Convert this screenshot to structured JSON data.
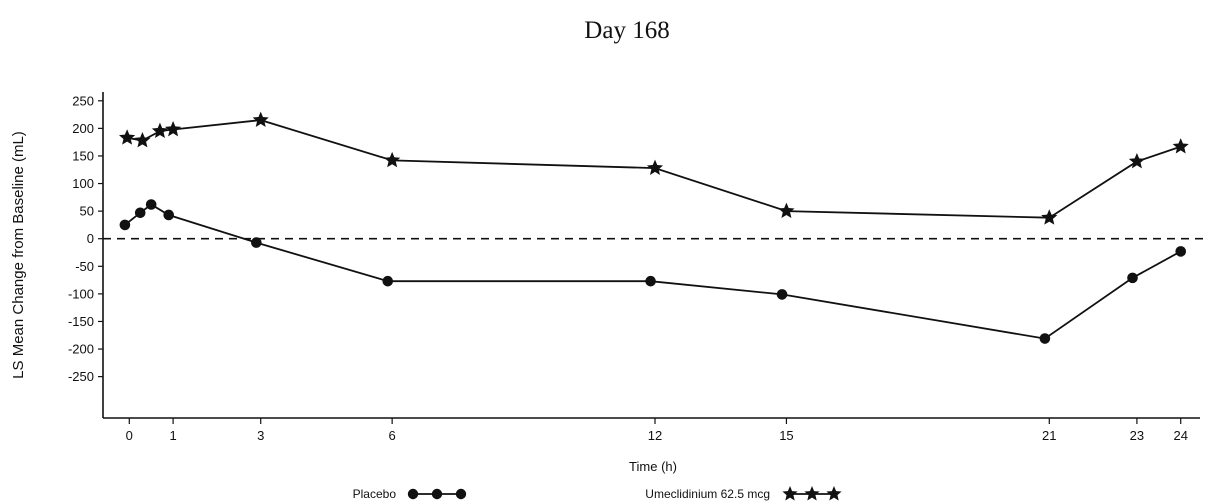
{
  "chart_data": {
    "type": "line",
    "title": "Day 168",
    "xlabel": "Time (h)",
    "ylabel": "LS Mean Change from Baseline (mL)",
    "xlim": [
      -0.6,
      24.6
    ],
    "ylim": [
      -325,
      275
    ],
    "x_ticks": [
      0,
      1,
      3,
      6,
      12,
      15,
      21,
      23,
      24
    ],
    "y_ticks": [
      250,
      200,
      150,
      100,
      50,
      0,
      -50,
      -100,
      -150,
      -200,
      -250
    ],
    "reference_line": {
      "y": 0,
      "style": "dashed"
    },
    "series": [
      {
        "name": "Placebo",
        "marker": "circle",
        "color": "#111111",
        "points": [
          {
            "x": -0.1,
            "y": 25
          },
          {
            "x": 0.25,
            "y": 47
          },
          {
            "x": 0.5,
            "y": 62
          },
          {
            "x": 0.9,
            "y": 43
          },
          {
            "x": 2.9,
            "y": -7
          },
          {
            "x": 5.9,
            "y": -77
          },
          {
            "x": 11.9,
            "y": -77
          },
          {
            "x": 14.9,
            "y": -101
          },
          {
            "x": 20.9,
            "y": -181
          },
          {
            "x": 22.9,
            "y": -71
          },
          {
            "x": 24.0,
            "y": -23
          }
        ]
      },
      {
        "name": "Umeclidinium 62.5 mcg",
        "marker": "star",
        "color": "#111111",
        "points": [
          {
            "x": -0.05,
            "y": 183
          },
          {
            "x": 0.3,
            "y": 178
          },
          {
            "x": 0.7,
            "y": 195
          },
          {
            "x": 1.0,
            "y": 198
          },
          {
            "x": 3.0,
            "y": 215
          },
          {
            "x": 6.0,
            "y": 142
          },
          {
            "x": 12.0,
            "y": 128
          },
          {
            "x": 15.0,
            "y": 50
          },
          {
            "x": 21.0,
            "y": 38
          },
          {
            "x": 23.0,
            "y": 140
          },
          {
            "x": 24.0,
            "y": 167
          }
        ]
      }
    ],
    "legend": {
      "position": "bottom"
    }
  }
}
